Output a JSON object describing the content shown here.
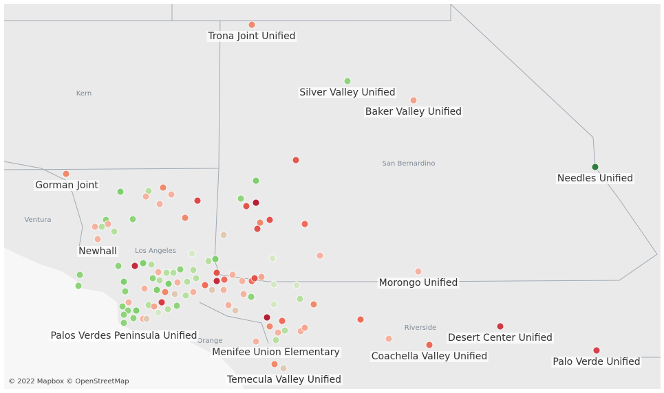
{
  "map": {
    "counties": [
      "Kern",
      "San Bernardino",
      "Ventura",
      "Los Angeles",
      "Riverside",
      "Orange"
    ],
    "districts": [
      {
        "label": "Trona Joint Unified"
      },
      {
        "label": "Silver Valley Unified"
      },
      {
        "label": "Baker Valley Unified"
      },
      {
        "label": "Needles Unified"
      },
      {
        "label": "Gorman Joint"
      },
      {
        "label": "Newhall"
      },
      {
        "label": "Morongo Unified"
      },
      {
        "label": "Desert Center Unified"
      },
      {
        "label": "Palo Verde Unified"
      },
      {
        "label": "Coachella Valley Unified"
      },
      {
        "label": "Menifee Union Elementary"
      },
      {
        "label": "Temecula Valley Unified"
      },
      {
        "label": "Palos Verdes Peninsula Unified"
      }
    ],
    "attribution": "© 2022 Mapbox © OpenStreetMap"
  }
}
